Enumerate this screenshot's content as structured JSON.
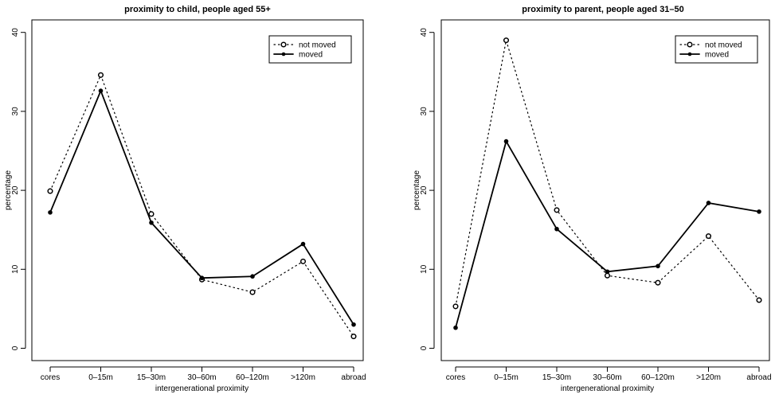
{
  "chart_data": [
    {
      "type": "line",
      "title": "proximity to child, people aged 55+",
      "xlabel": "intergenerational proximity",
      "ylabel": "percentage",
      "categories": [
        "cores",
        "0–15m",
        "15–30m",
        "30–60m",
        "60–120m",
        ">120m",
        "abroad"
      ],
      "ylim": [
        0,
        40
      ],
      "yticks": [
        "0",
        "10",
        "20",
        "30",
        "40"
      ],
      "grid": false,
      "legend_position": "top-right",
      "series": [
        {
          "name": "not moved",
          "style": "dotted-open-circle",
          "values": [
            19.9,
            34.6,
            17.0,
            8.7,
            7.1,
            11.0,
            1.5
          ]
        },
        {
          "name": "moved",
          "style": "solid-filled-dot",
          "values": [
            17.2,
            32.6,
            15.9,
            8.9,
            9.1,
            13.2,
            3.0
          ]
        }
      ]
    },
    {
      "type": "line",
      "title": "proximity to parent, people aged 31–50",
      "xlabel": "intergenerational proximity",
      "ylabel": "percentage",
      "categories": [
        "cores",
        "0–15m",
        "15–30m",
        "30–60m",
        "60–120m",
        ">120m",
        "abroad"
      ],
      "ylim": [
        0,
        40
      ],
      "yticks": [
        "0",
        "10",
        "20",
        "30",
        "40"
      ],
      "grid": false,
      "legend_position": "top-right",
      "series": [
        {
          "name": "not moved",
          "style": "dotted-open-circle",
          "values": [
            5.3,
            39.0,
            17.5,
            9.2,
            8.3,
            14.2,
            6.1
          ]
        },
        {
          "name": "moved",
          "style": "solid-filled-dot",
          "values": [
            2.6,
            26.2,
            15.1,
            9.7,
            10.4,
            18.4,
            17.3
          ]
        }
      ]
    }
  ]
}
